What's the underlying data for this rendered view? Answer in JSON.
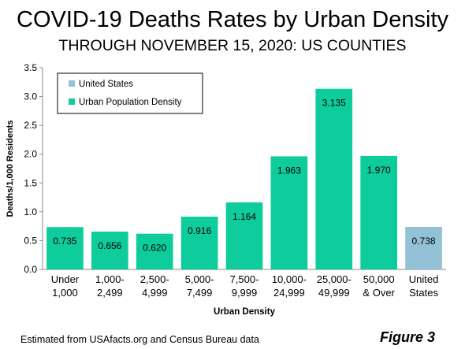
{
  "title": "COVID-19 Deaths Rates by Urban Density",
  "subtitle": "THROUGH NOVEMBER 15, 2020: US COUNTIES",
  "footer": {
    "source": "Estimated from USAfacts.org and Census Bureau data",
    "figure": "Figure 3"
  },
  "chart_data": {
    "type": "bar",
    "categories": [
      [
        "Under",
        "1,000"
      ],
      [
        "1,000-",
        "2,499"
      ],
      [
        "2,500-",
        "4,999"
      ],
      [
        "5,000-",
        "7,499"
      ],
      [
        "7,500-",
        "9,999"
      ],
      [
        "10,000-",
        "24,999"
      ],
      [
        "25,000-",
        "49,999"
      ],
      [
        "50,000",
        "& Over"
      ],
      [
        "United",
        "States"
      ]
    ],
    "values": [
      0.735,
      0.656,
      0.62,
      0.916,
      1.164,
      1.963,
      3.135,
      1.97,
      0.738
    ],
    "value_labels": [
      "0.735",
      "0.656",
      "0.620",
      "0.916",
      "1.164",
      "1.963",
      "3.135",
      "1.970",
      "0.738"
    ],
    "series_index": [
      1,
      1,
      1,
      1,
      1,
      1,
      1,
      1,
      0
    ],
    "series": [
      {
        "name": "United States",
        "color": "#93C1D6"
      },
      {
        "name": "Urban Population Density",
        "color": "#0ECC9B"
      }
    ],
    "xlabel": "Urban Density",
    "ylabel": "Deaths/1,000 Residents",
    "ylim": [
      0,
      3.5
    ],
    "yticks": [
      "0.0",
      "0.5",
      "1.0",
      "1.5",
      "2.0",
      "2.5",
      "3.0",
      "3.5"
    ],
    "legend_position": "top-left",
    "grid": false
  }
}
